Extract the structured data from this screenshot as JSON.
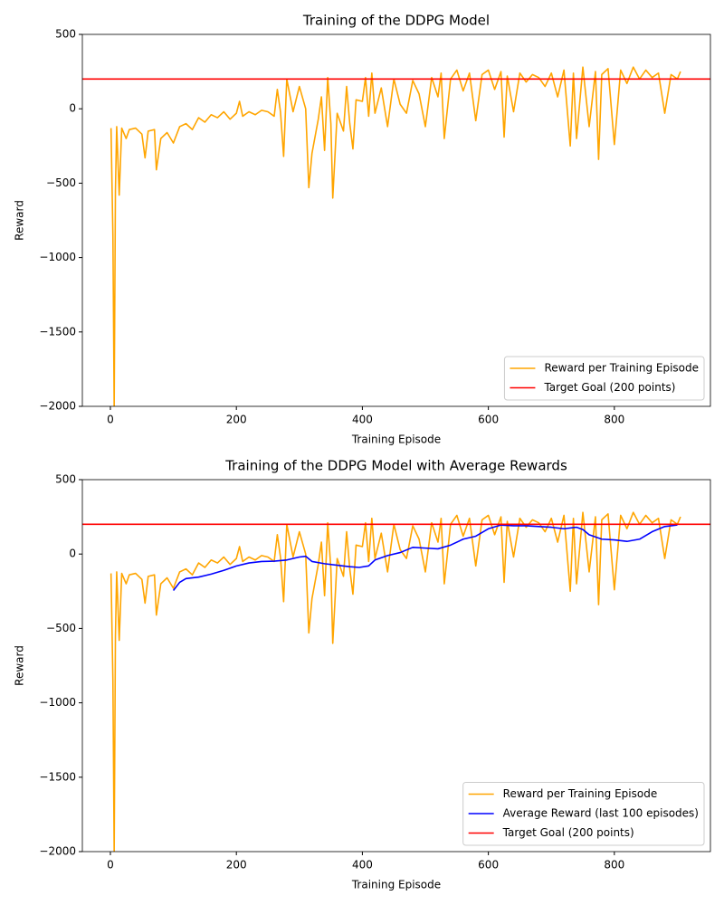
{
  "charts": [
    {
      "type": "line",
      "title": "Training of the DDPG Model",
      "xlabel": "Training Episode",
      "ylabel": "Reward",
      "xlim": [
        -44.5,
        952.5
      ],
      "ylim": [
        -2000,
        500
      ],
      "xticks": [
        0,
        200,
        400,
        600,
        800
      ],
      "yticks": [
        {
          "value": -2000,
          "label": "−2000"
        },
        {
          "value": -1500,
          "label": "−1500"
        },
        {
          "value": -1000,
          "label": "−1000"
        },
        {
          "value": -500,
          "label": "−500"
        },
        0,
        500
      ],
      "legend": "lower right",
      "series": [
        {
          "name": "Reward per Training Episode",
          "color": "orange",
          "x": [
            1,
            4,
            6,
            8,
            10,
            14,
            18,
            25,
            30,
            40,
            50,
            55,
            60,
            70,
            73,
            80,
            90,
            100,
            110,
            120,
            130,
            140,
            150,
            160,
            170,
            180,
            190,
            200,
            205,
            210,
            220,
            230,
            240,
            250,
            260,
            265,
            270,
            275,
            280,
            290,
            300,
            310,
            315,
            320,
            330,
            335,
            340,
            345,
            350,
            353,
            360,
            370,
            375,
            380,
            385,
            390,
            400,
            405,
            410,
            415,
            420,
            430,
            440,
            450,
            460,
            470,
            480,
            490,
            500,
            510,
            520,
            525,
            530,
            540,
            550,
            560,
            570,
            580,
            590,
            600,
            610,
            620,
            625,
            630,
            640,
            650,
            660,
            670,
            680,
            690,
            700,
            710,
            720,
            730,
            735,
            740,
            750,
            760,
            770,
            775,
            780,
            790,
            800,
            810,
            820,
            830,
            840,
            850,
            860,
            870,
            880,
            890,
            900,
            905
          ],
          "values": [
            -130,
            -850,
            -2000,
            -550,
            -120,
            -580,
            -130,
            -200,
            -140,
            -130,
            -170,
            -330,
            -150,
            -140,
            -410,
            -200,
            -160,
            -230,
            -120,
            -100,
            -140,
            -60,
            -90,
            -40,
            -60,
            -20,
            -70,
            -30,
            50,
            -50,
            -20,
            -40,
            -10,
            -20,
            -50,
            130,
            -20,
            -320,
            200,
            -20,
            150,
            0,
            -530,
            -300,
            -70,
            80,
            -280,
            210,
            -100,
            -600,
            -30,
            -150,
            150,
            -100,
            -270,
            60,
            50,
            210,
            -50,
            240,
            -30,
            140,
            -120,
            200,
            30,
            -30,
            190,
            100,
            -120,
            210,
            80,
            240,
            -200,
            200,
            260,
            120,
            240,
            -80,
            230,
            260,
            130,
            250,
            -190,
            220,
            -20,
            240,
            180,
            230,
            210,
            150,
            240,
            80,
            260,
            -250,
            240,
            -200,
            280,
            -120,
            250,
            -340,
            230,
            270,
            -240,
            260,
            170,
            280,
            200,
            260,
            210,
            240,
            -30,
            230,
            200,
            250
          ]
        }
      ],
      "reference_lines": [
        {
          "name": "Target Goal (200 points)",
          "value": 200,
          "color": "red"
        }
      ]
    },
    {
      "type": "line",
      "title": "Training of the DDPG Model with Average Rewards",
      "xlabel": "Training Episode",
      "ylabel": "Reward",
      "xlim": [
        -44.5,
        952.5
      ],
      "ylim": [
        -2000,
        500
      ],
      "xticks": [
        0,
        200,
        400,
        600,
        800
      ],
      "yticks": [
        {
          "value": -2000,
          "label": "−2000"
        },
        {
          "value": -1500,
          "label": "−1500"
        },
        {
          "value": -1000,
          "label": "−1000"
        },
        {
          "value": -500,
          "label": "−500"
        },
        0,
        500
      ],
      "legend": "lower right",
      "series": [
        {
          "name": "Reward per Training Episode",
          "color": "orange",
          "x": [
            1,
            4,
            6,
            8,
            10,
            14,
            18,
            25,
            30,
            40,
            50,
            55,
            60,
            70,
            73,
            80,
            90,
            100,
            110,
            120,
            130,
            140,
            150,
            160,
            170,
            180,
            190,
            200,
            205,
            210,
            220,
            230,
            240,
            250,
            260,
            265,
            270,
            275,
            280,
            290,
            300,
            310,
            315,
            320,
            330,
            335,
            340,
            345,
            350,
            353,
            360,
            370,
            375,
            380,
            385,
            390,
            400,
            405,
            410,
            415,
            420,
            430,
            440,
            450,
            460,
            470,
            480,
            490,
            500,
            510,
            520,
            525,
            530,
            540,
            550,
            560,
            570,
            580,
            590,
            600,
            610,
            620,
            625,
            630,
            640,
            650,
            660,
            670,
            680,
            690,
            700,
            710,
            720,
            730,
            735,
            740,
            750,
            760,
            770,
            775,
            780,
            790,
            800,
            810,
            820,
            830,
            840,
            850,
            860,
            870,
            880,
            890,
            900,
            905
          ],
          "values": [
            -130,
            -850,
            -2000,
            -550,
            -120,
            -580,
            -130,
            -200,
            -140,
            -130,
            -170,
            -330,
            -150,
            -140,
            -410,
            -200,
            -160,
            -230,
            -120,
            -100,
            -140,
            -60,
            -90,
            -40,
            -60,
            -20,
            -70,
            -30,
            50,
            -50,
            -20,
            -40,
            -10,
            -20,
            -50,
            130,
            -20,
            -320,
            200,
            -20,
            150,
            0,
            -530,
            -300,
            -70,
            80,
            -280,
            210,
            -100,
            -600,
            -30,
            -150,
            150,
            -100,
            -270,
            60,
            50,
            210,
            -50,
            240,
            -30,
            140,
            -120,
            200,
            30,
            -30,
            190,
            100,
            -120,
            210,
            80,
            240,
            -200,
            200,
            260,
            120,
            240,
            -80,
            230,
            260,
            130,
            250,
            -190,
            220,
            -20,
            240,
            180,
            230,
            210,
            150,
            240,
            80,
            260,
            -250,
            240,
            -200,
            280,
            -120,
            250,
            -340,
            230,
            270,
            -240,
            260,
            170,
            280,
            200,
            260,
            210,
            240,
            -30,
            230,
            200,
            250
          ]
        },
        {
          "name": "Average Reward (last 100 episodes)",
          "color": "blue",
          "x": [
            100,
            110,
            120,
            140,
            160,
            180,
            200,
            220,
            240,
            260,
            280,
            300,
            310,
            320,
            340,
            360,
            380,
            395,
            410,
            420,
            440,
            460,
            480,
            500,
            520,
            540,
            560,
            580,
            600,
            620,
            640,
            660,
            680,
            700,
            720,
            740,
            750,
            760,
            780,
            800,
            820,
            840,
            860,
            880,
            900
          ],
          "values": [
            -245,
            -190,
            -165,
            -155,
            -135,
            -110,
            -80,
            -60,
            -50,
            -48,
            -40,
            -20,
            -15,
            -50,
            -65,
            -75,
            -85,
            -90,
            -80,
            -40,
            -10,
            10,
            45,
            40,
            35,
            60,
            100,
            120,
            170,
            195,
            190,
            190,
            185,
            180,
            170,
            180,
            165,
            130,
            100,
            95,
            85,
            100,
            150,
            185,
            195
          ]
        }
      ],
      "reference_lines": [
        {
          "name": "Target Goal (200 points)",
          "value": 200,
          "color": "red"
        }
      ]
    }
  ]
}
